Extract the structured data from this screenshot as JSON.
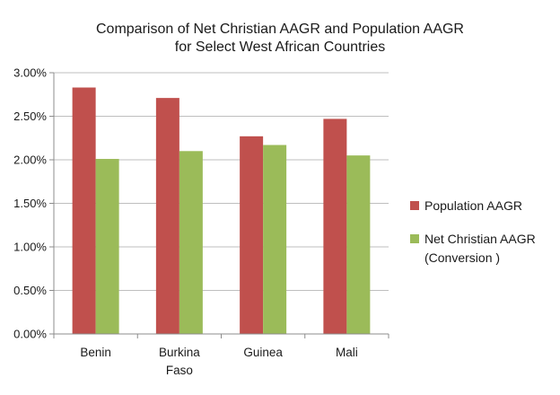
{
  "chart_data": {
    "type": "bar",
    "title_lines": [
      "Comparison of Net Christian AAGR and Population AAGR",
      "for Select West African Countries"
    ],
    "categories": [
      [
        "Benin"
      ],
      [
        "Burkina",
        "Faso"
      ],
      [
        "Guinea"
      ],
      [
        "Mali"
      ]
    ],
    "series": [
      {
        "name_lines": [
          "Population AAGR"
        ],
        "color": "#c0504d",
        "values": [
          2.83,
          2.71,
          2.27,
          2.47
        ]
      },
      {
        "name_lines": [
          "Net Christian AAGR",
          "(Conversion )"
        ],
        "color": "#9bbb59",
        "values": [
          2.01,
          2.1,
          2.17,
          2.05
        ]
      }
    ],
    "y_ticks": [
      "0.00%",
      "0.50%",
      "1.00%",
      "1.50%",
      "2.00%",
      "2.50%",
      "3.00%"
    ],
    "ylim": [
      0,
      3
    ],
    "y_step": 0.5,
    "grid": true,
    "legend_position": "right"
  }
}
